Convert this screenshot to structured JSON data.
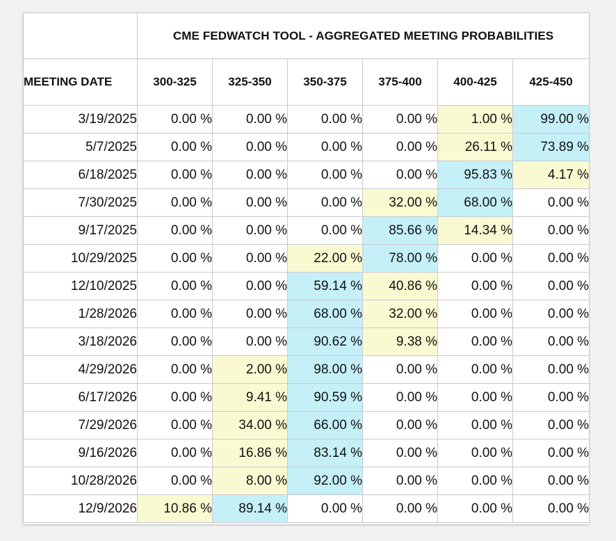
{
  "title": "CME FEDWATCH TOOL - AGGREGATED MEETING PROBABILITIES",
  "date_header": "MEETING DATE",
  "rate_ranges": [
    "300-325",
    "325-350",
    "350-375",
    "375-400",
    "400-425",
    "425-450"
  ],
  "highlight_colors": {
    "primary": "#c5f0f8",
    "secondary": "#fafad2"
  },
  "rows": [
    {
      "date": "3/19/2025",
      "values": [
        "0.00 %",
        "0.00 %",
        "0.00 %",
        "0.00 %",
        "1.00 %",
        "99.00 %"
      ]
    },
    {
      "date": "5/7/2025",
      "values": [
        "0.00 %",
        "0.00 %",
        "0.00 %",
        "0.00 %",
        "26.11 %",
        "73.89 %"
      ]
    },
    {
      "date": "6/18/2025",
      "values": [
        "0.00 %",
        "0.00 %",
        "0.00 %",
        "0.00 %",
        "95.83 %",
        "4.17 %"
      ]
    },
    {
      "date": "7/30/2025",
      "values": [
        "0.00 %",
        "0.00 %",
        "0.00 %",
        "32.00 %",
        "68.00 %",
        "0.00 %"
      ]
    },
    {
      "date": "9/17/2025",
      "values": [
        "0.00 %",
        "0.00 %",
        "0.00 %",
        "85.66 %",
        "14.34 %",
        "0.00 %"
      ]
    },
    {
      "date": "10/29/2025",
      "values": [
        "0.00 %",
        "0.00 %",
        "22.00 %",
        "78.00 %",
        "0.00 %",
        "0.00 %"
      ]
    },
    {
      "date": "12/10/2025",
      "values": [
        "0.00 %",
        "0.00 %",
        "59.14 %",
        "40.86 %",
        "0.00 %",
        "0.00 %"
      ]
    },
    {
      "date": "1/28/2026",
      "values": [
        "0.00 %",
        "0.00 %",
        "68.00 %",
        "32.00 %",
        "0.00 %",
        "0.00 %"
      ]
    },
    {
      "date": "3/18/2026",
      "values": [
        "0.00 %",
        "0.00 %",
        "90.62 %",
        "9.38 %",
        "0.00 %",
        "0.00 %"
      ]
    },
    {
      "date": "4/29/2026",
      "values": [
        "0.00 %",
        "2.00 %",
        "98.00 %",
        "0.00 %",
        "0.00 %",
        "0.00 %"
      ]
    },
    {
      "date": "6/17/2026",
      "values": [
        "0.00 %",
        "9.41 %",
        "90.59 %",
        "0.00 %",
        "0.00 %",
        "0.00 %"
      ]
    },
    {
      "date": "7/29/2026",
      "values": [
        "0.00 %",
        "34.00 %",
        "66.00 %",
        "0.00 %",
        "0.00 %",
        "0.00 %"
      ]
    },
    {
      "date": "9/16/2026",
      "values": [
        "0.00 %",
        "16.86 %",
        "83.14 %",
        "0.00 %",
        "0.00 %",
        "0.00 %"
      ]
    },
    {
      "date": "10/28/2026",
      "values": [
        "0.00 %",
        "8.00 %",
        "92.00 %",
        "0.00 %",
        "0.00 %",
        "0.00 %"
      ]
    },
    {
      "date": "12/9/2026",
      "values": [
        "10.86 %",
        "89.14 %",
        "0.00 %",
        "0.00 %",
        "0.00 %",
        "0.00 %"
      ]
    }
  ]
}
